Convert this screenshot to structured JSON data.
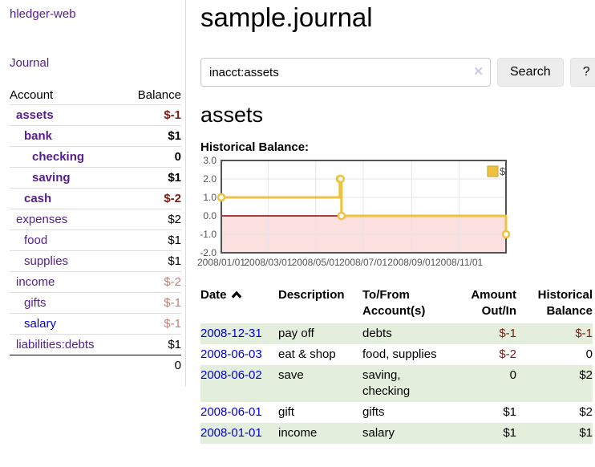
{
  "sidebar": {
    "app_title": "hledger-web",
    "nav": {
      "journal": "Journal"
    },
    "accounts_table": {
      "headers": {
        "account": "Account",
        "balance": "Balance"
      },
      "rows": [
        {
          "account": "assets",
          "balance": "$-1",
          "level": 1,
          "bold": true,
          "balance_style": "neg",
          "link_color": "purple"
        },
        {
          "account": "bank",
          "balance": "$1",
          "level": 2,
          "bold": true,
          "balance_style": "",
          "link_color": "purple"
        },
        {
          "account": "checking",
          "balance": "0",
          "level": 3,
          "bold": true,
          "balance_style": "",
          "link_color": "purple"
        },
        {
          "account": "saving",
          "balance": "$1",
          "level": 3,
          "bold": true,
          "balance_style": "",
          "link_color": "purple"
        },
        {
          "account": "cash",
          "balance": "$-2",
          "level": 2,
          "bold": true,
          "balance_style": "neg",
          "link_color": "purple"
        },
        {
          "account": "expenses",
          "balance": "$2",
          "level": 1,
          "bold": false,
          "balance_style": "",
          "link_color": "purple"
        },
        {
          "account": "food",
          "balance": "$1",
          "level": 2,
          "bold": false,
          "balance_style": "",
          "link_color": "purple"
        },
        {
          "account": "supplies",
          "balance": "$1",
          "level": 2,
          "bold": false,
          "balance_style": "",
          "link_color": "purple"
        },
        {
          "account": "income",
          "balance": "$-2",
          "level": 1,
          "bold": false,
          "balance_style": "neg-dim",
          "link_color": "purple"
        },
        {
          "account": "gifts",
          "balance": "$-1",
          "level": 2,
          "bold": false,
          "balance_style": "neg-dim",
          "link_color": "purple"
        },
        {
          "account": "salary",
          "balance": "$-1",
          "level": 2,
          "bold": false,
          "balance_style": "neg-dim",
          "link_color": "blue"
        },
        {
          "account": "liabilities:debts",
          "balance": "$1",
          "level": 1,
          "bold": false,
          "balance_style": "",
          "link_color": "purple"
        }
      ],
      "total": "0"
    }
  },
  "main": {
    "title": "sample.journal",
    "search": {
      "value": "inacct:assets",
      "clear_glyph": "✕",
      "search_button": "Search",
      "help_button": "?"
    },
    "heading": "assets",
    "chart_title": "Historical Balance:"
  },
  "chart_data": {
    "type": "line",
    "style": "step",
    "title": "Historical Balance",
    "x_range": [
      "2008-01-01",
      "2008-12-31"
    ],
    "ylim": [
      -2,
      3
    ],
    "y_ticks": [
      [
        3,
        "3.0"
      ],
      [
        2,
        "2.0"
      ],
      [
        1,
        "1.0"
      ],
      [
        0,
        "0.0"
      ],
      [
        -1,
        "-1.0"
      ],
      [
        -2,
        "-2.0"
      ]
    ],
    "x_ticks": [
      "2008/01/01",
      "2008/03/01",
      "2008/05/01",
      "2008/07/01",
      "2008/09/01",
      "2008/11/01"
    ],
    "series": [
      {
        "name": "$",
        "color": "#edc240",
        "points": [
          [
            "2008-01-01",
            1
          ],
          [
            "2008-06-01",
            2
          ],
          [
            "2008-06-02",
            2
          ],
          [
            "2008-06-03",
            0
          ],
          [
            "2008-12-31",
            -1
          ]
        ]
      }
    ],
    "legend_position": "top-right",
    "grid": true,
    "negative_region_color": "#fcdfdf",
    "zero_line_color": "#8b0000",
    "grid_color": "#e6e6e6",
    "frame_color": "#545454"
  },
  "register": {
    "headers": [
      "Date",
      "Description",
      "To/From Account(s)",
      "Amount Out/In",
      "Historical Balance"
    ],
    "sort": "date-ascending",
    "rows": [
      {
        "date": "2008-12-31",
        "description": "pay off",
        "accounts": "debts",
        "amount": "$-1",
        "balance": "$-1",
        "amount_style": "neg",
        "balance_style": "neg"
      },
      {
        "date": "2008-06-03",
        "description": "eat & shop",
        "accounts": "food, supplies",
        "amount": "$-2",
        "balance": "0",
        "amount_style": "neg",
        "balance_style": ""
      },
      {
        "date": "2008-06-02",
        "description": "save",
        "accounts": "saving, checking",
        "amount": "0",
        "balance": "$2",
        "amount_style": "",
        "balance_style": ""
      },
      {
        "date": "2008-06-01",
        "description": "gift",
        "accounts": "gifts",
        "amount": "$1",
        "balance": "$2",
        "amount_style": "",
        "balance_style": ""
      },
      {
        "date": "2008-01-01",
        "description": "income",
        "accounts": "salary",
        "amount": "$1",
        "balance": "$1",
        "amount_style": "",
        "balance_style": ""
      }
    ]
  },
  "colors": {
    "link_purple": "#571c8d",
    "link_blue": "#0000e0",
    "negative": "#7c1b13",
    "negative_dim": "#c07f79",
    "row_stripe_green": "#e3efdc",
    "series_gold": "#edc240"
  }
}
